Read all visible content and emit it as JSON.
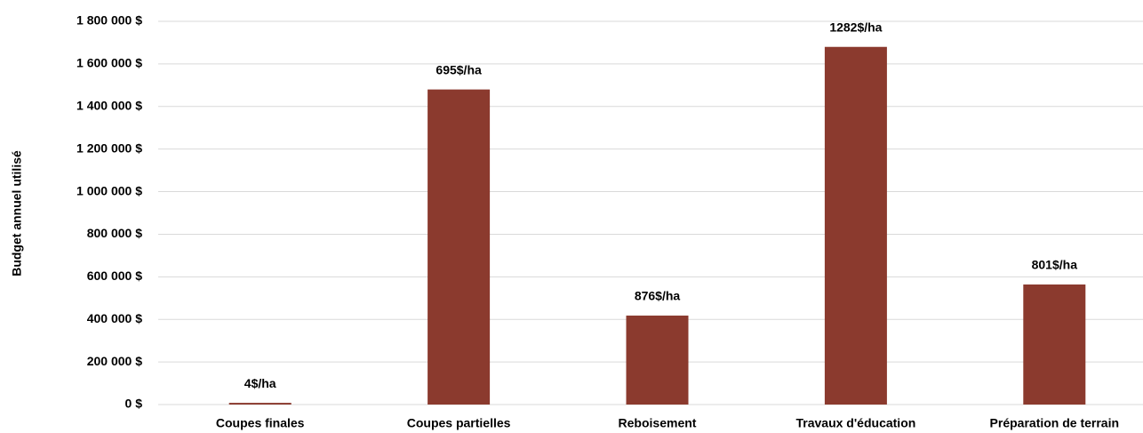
{
  "chart_data": {
    "type": "bar",
    "y_label": "Budget annuel utilisé",
    "categories": [
      "Coupes finales",
      "Coupes partielles",
      "Reboisement",
      "Travaux d'éducation",
      "Préparation de terrain"
    ],
    "values": [
      8000,
      1480000,
      418000,
      1680000,
      564000
    ],
    "annotations": [
      "4$/ha",
      "695$/ha",
      "876$/ha",
      "1282$/ha",
      "801$/ha"
    ],
    "color": "#8b3a2e",
    "ylim": [
      0,
      1800000
    ],
    "yticks": [
      {
        "value": 0,
        "label": "0 $"
      },
      {
        "value": 200000,
        "label": "200 000 $"
      },
      {
        "value": 400000,
        "label": "400 000 $"
      },
      {
        "value": 600000,
        "label": "600 000 $"
      },
      {
        "value": 800000,
        "label": "800 000 $"
      },
      {
        "value": 1000000,
        "label": "1 000 000 $"
      },
      {
        "value": 1200000,
        "label": "1 200 000 $"
      },
      {
        "value": 1400000,
        "label": "1 400 000 $"
      },
      {
        "value": 1600000,
        "label": "1 600 000 $"
      },
      {
        "value": 1800000,
        "label": "1 800 000 $"
      }
    ],
    "grid": true
  }
}
